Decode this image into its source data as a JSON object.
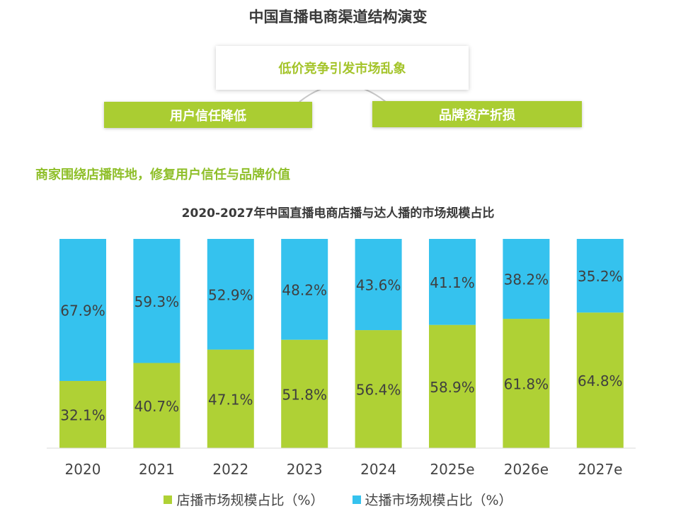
{
  "header": {
    "title": "中国直播电商渠道结构演变",
    "top_box": "低价竞争引发市场乱象",
    "left_box": "用户信任降低",
    "right_box": "品牌资产折损",
    "subheading": "商家围绕店播阵地，修复用户信任与品牌价值"
  },
  "colors": {
    "store": "#afd135",
    "influencer": "#35c2ee",
    "accent_text": "#8fbf2a"
  },
  "chart_data": {
    "type": "bar",
    "stacked": true,
    "title": "2020-2027年中国直播电商店播与达人播的市场规模占比",
    "categories": [
      "2020",
      "2021",
      "2022",
      "2023",
      "2024",
      "2025e",
      "2026e",
      "2027e"
    ],
    "series": [
      {
        "name": "店播市场规模占比（%）",
        "values": [
          32.1,
          40.7,
          47.1,
          51.8,
          56.4,
          58.9,
          61.8,
          64.8
        ],
        "labels": [
          "32.1%",
          "40.7%",
          "47.1%",
          "51.8%",
          "56.4%",
          "58.9%",
          "61.8%",
          "64.8%"
        ]
      },
      {
        "name": "达播市场规模占比（%）",
        "values": [
          67.9,
          59.3,
          52.9,
          48.2,
          43.6,
          41.1,
          38.2,
          35.2
        ],
        "labels": [
          "67.9%",
          "59.3%",
          "52.9%",
          "48.2%",
          "43.6%",
          "41.1%",
          "38.2%",
          "35.2%"
        ]
      }
    ],
    "ylim": [
      0,
      100
    ],
    "legend_position": "bottom"
  }
}
